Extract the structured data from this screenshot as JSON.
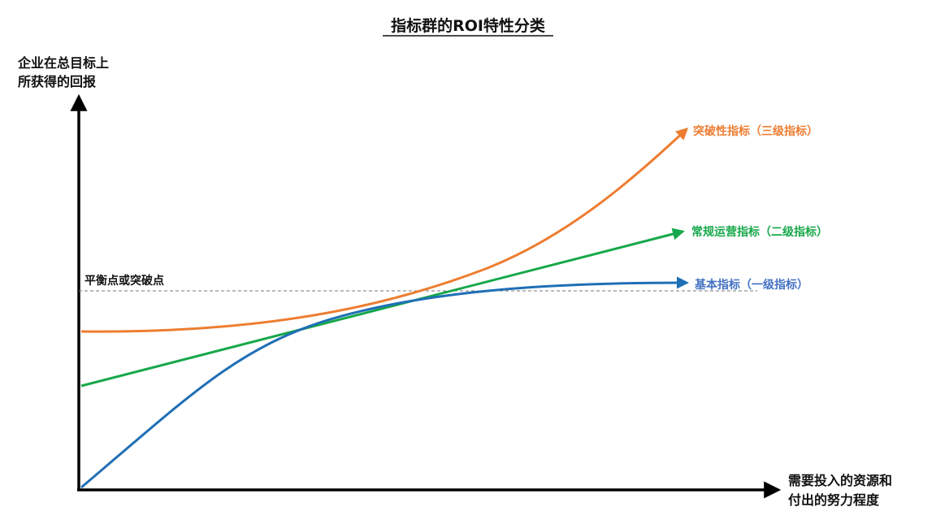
{
  "title": "指标群的ROI特性分类",
  "y_axis": {
    "label_line1": "企业在总目标上",
    "label_line2": "所获得的回报"
  },
  "x_axis": {
    "label_line1": "需要投入的资源和",
    "label_line2": "付出的努力程度"
  },
  "reference_line": {
    "label": "平衡点或突破点"
  },
  "curves": [
    {
      "key": "breakthrough",
      "label": "突破性指标（三级指标）",
      "color": "#ED7D31"
    },
    {
      "key": "operational",
      "label": "常规运营指标（二级指标）",
      "color": "#16A84A"
    },
    {
      "key": "basic",
      "label": "基本指标（一级指标）",
      "color": "#1F6FB5"
    }
  ],
  "colors": {
    "axis": "#000000",
    "reference_line": "#777777",
    "basic_label": "#4472C4"
  }
}
